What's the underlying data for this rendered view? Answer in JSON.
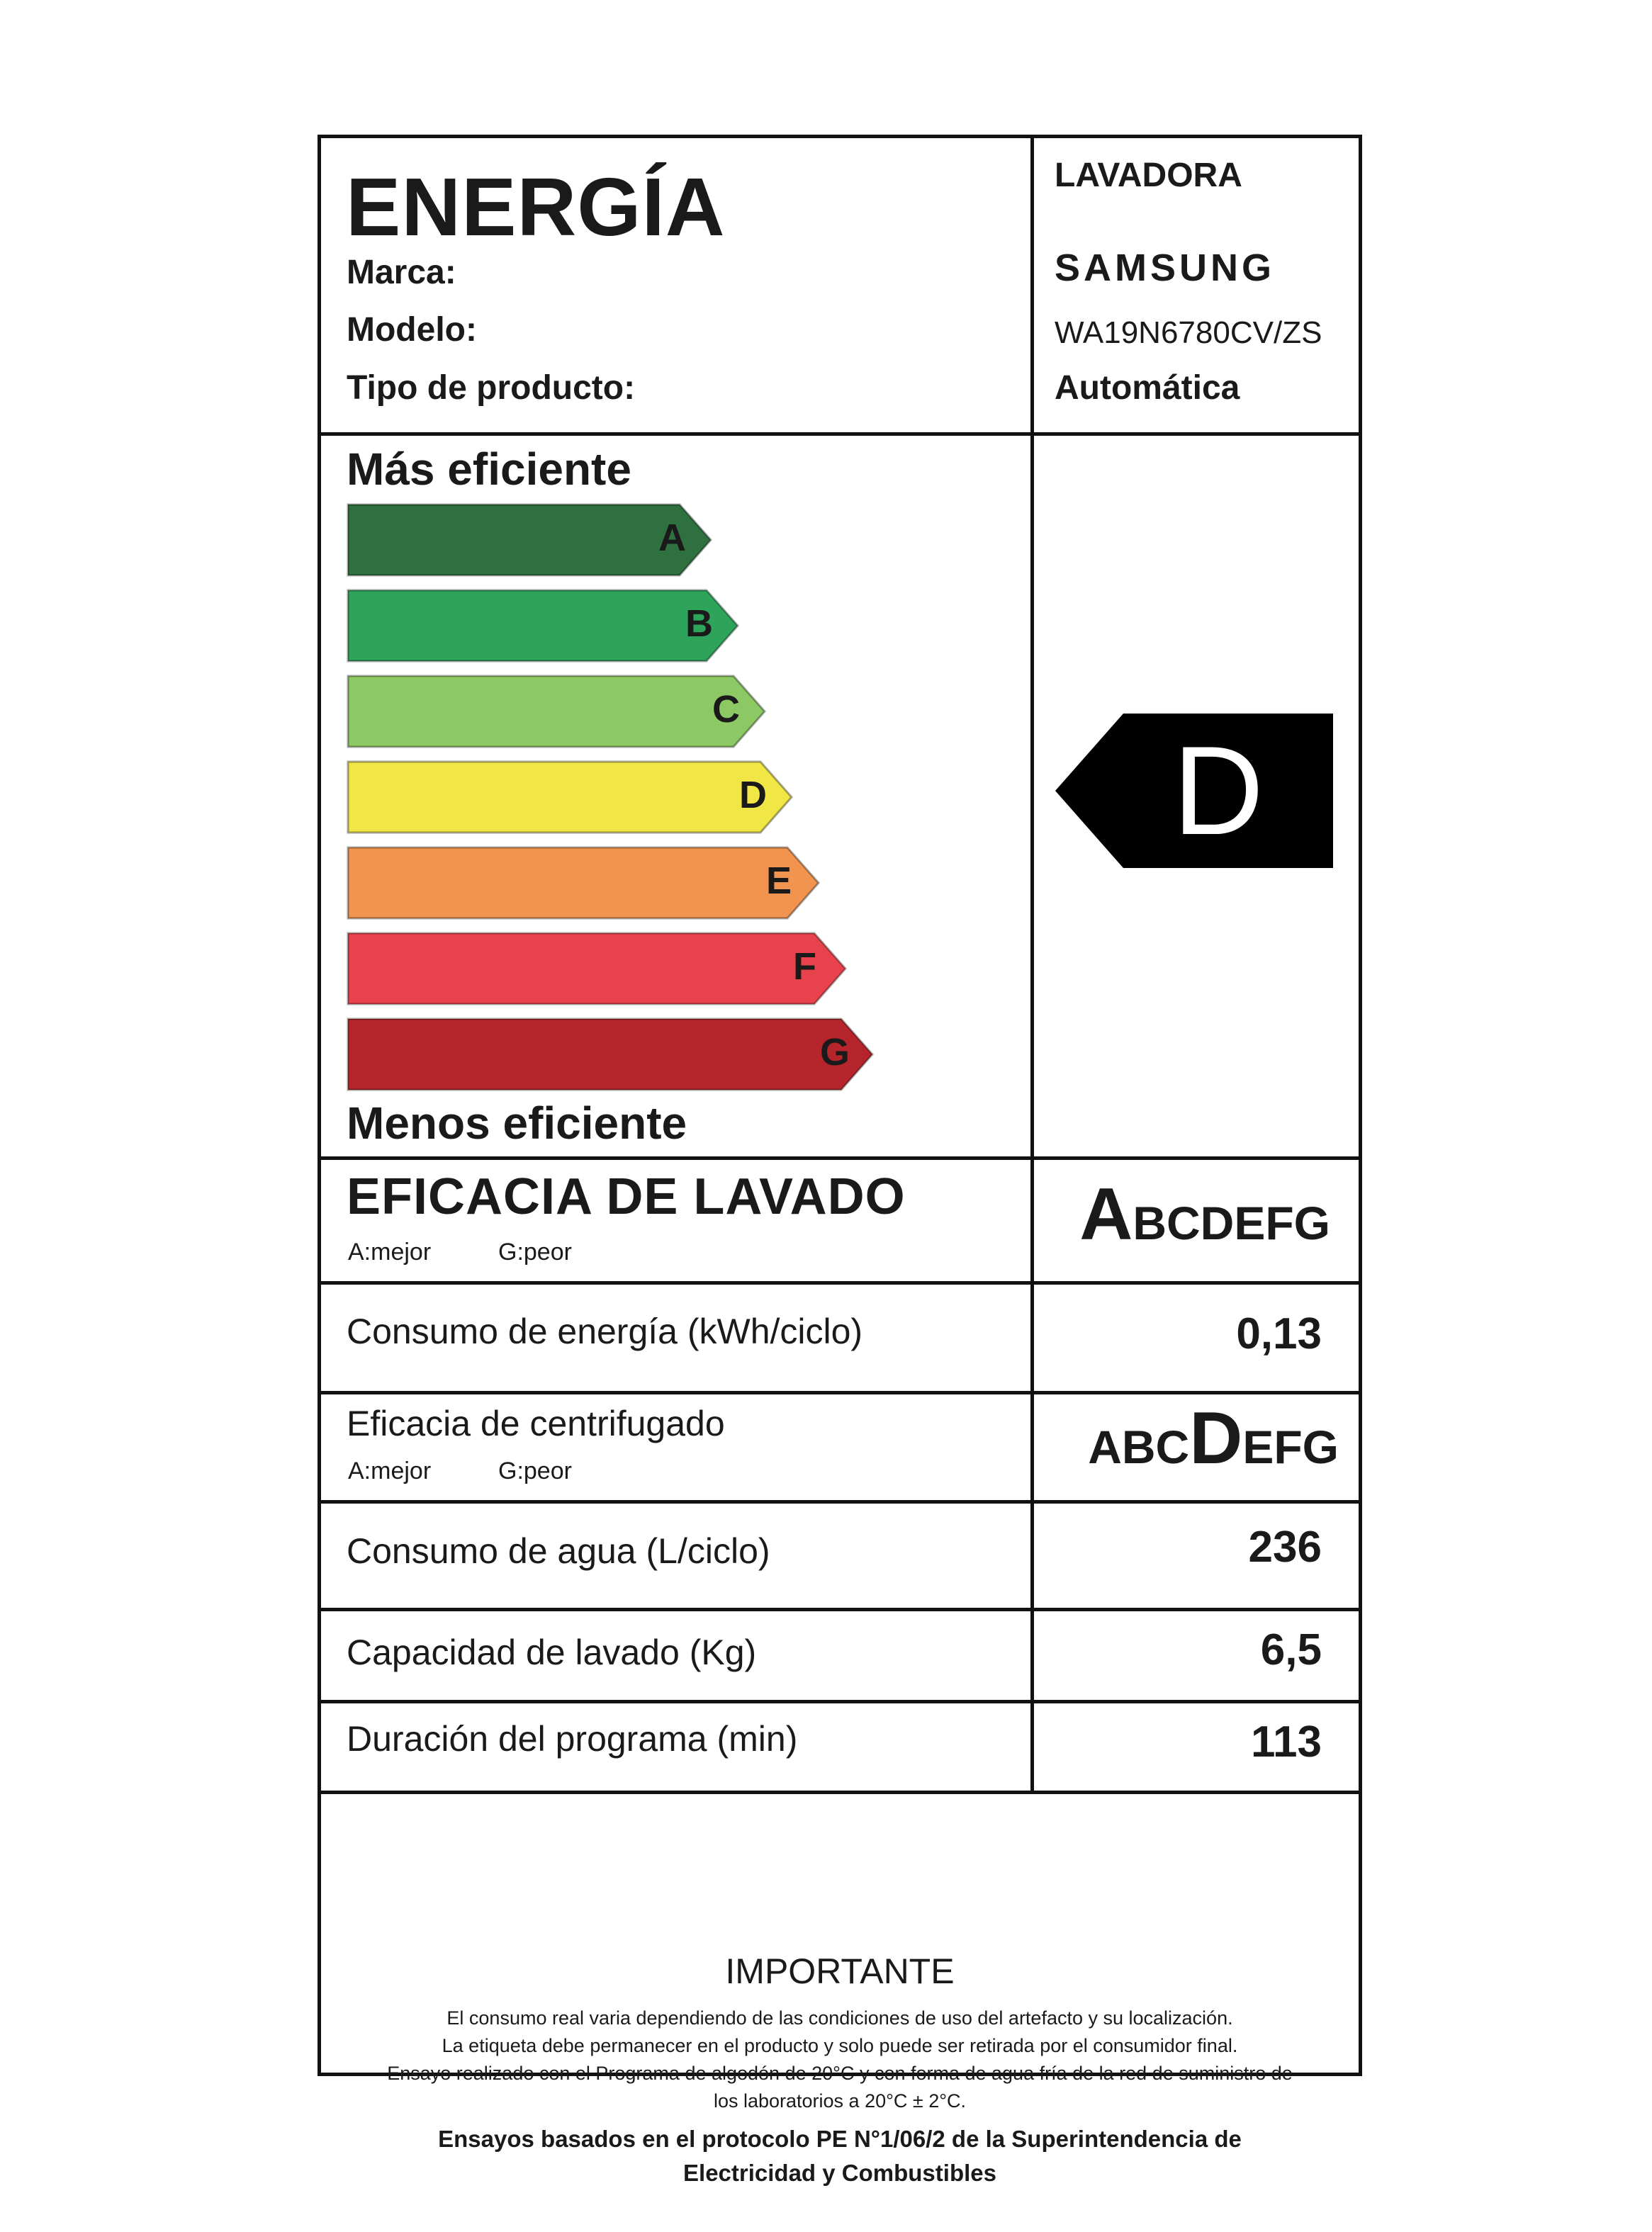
{
  "header": {
    "title": "ENERGÍA",
    "appliance": "LAVADORA",
    "brand_label": "Marca:",
    "brand": "SAMSUNG",
    "model_label": "Modelo:",
    "model": "WA19N6780CV/ZS",
    "type_label": "Tipo de producto:",
    "type": "Automática"
  },
  "scale": {
    "top_label": "Más eficiente",
    "bottom_label": "Menos eficiente",
    "classes": [
      {
        "letter": "A",
        "color": "#2e7040"
      },
      {
        "letter": "B",
        "color": "#2ea35a"
      },
      {
        "letter": "C",
        "color": "#8cc864"
      },
      {
        "letter": "D",
        "color": "#f0e646"
      },
      {
        "letter": "E",
        "color": "#f09450"
      },
      {
        "letter": "F",
        "color": "#e8434c"
      },
      {
        "letter": "G",
        "color": "#b6242c"
      }
    ],
    "rating": "D",
    "rating_color": "#000000"
  },
  "wash": {
    "title": "EFICACIA DE LAVADO",
    "best": "A:mejor",
    "worst": "G:peor",
    "classes": [
      "A",
      "BCDEFG"
    ]
  },
  "energy": {
    "label": "Consumo de energía (kWh/ciclo)",
    "value": "0,13"
  },
  "spin": {
    "label": "Eficacia de centrifugado",
    "best": "A:mejor",
    "worst": "G:peor",
    "classes": [
      "ABC",
      "D",
      "EFG"
    ]
  },
  "water": {
    "label": "Consumo de agua (L/ciclo)",
    "value": "236"
  },
  "capacity": {
    "label": "Capacidad de lavado (Kg)",
    "value": "6,5"
  },
  "duration": {
    "label": "Duración del programa (min)",
    "value": "113"
  },
  "important": {
    "title": "IMPORTANTE",
    "lines": [
      "El consumo real varia dependiendo de las condiciones de uso del artefacto y su localización.",
      "La etiqueta debe permanecer en el producto y solo puede ser retirada por el consumidor final.",
      "Ensayo realizado con el Programa de algodón de 20°C y con forma de agua fría de la red de suministro de",
      "los laboratorios a 20°C ± 2°C."
    ],
    "bold_lines": [
      "Ensayos basados en el protocolo PE N°1/06/2 de la Superintendencia de",
      "Electricidad y Combustibles"
    ]
  }
}
